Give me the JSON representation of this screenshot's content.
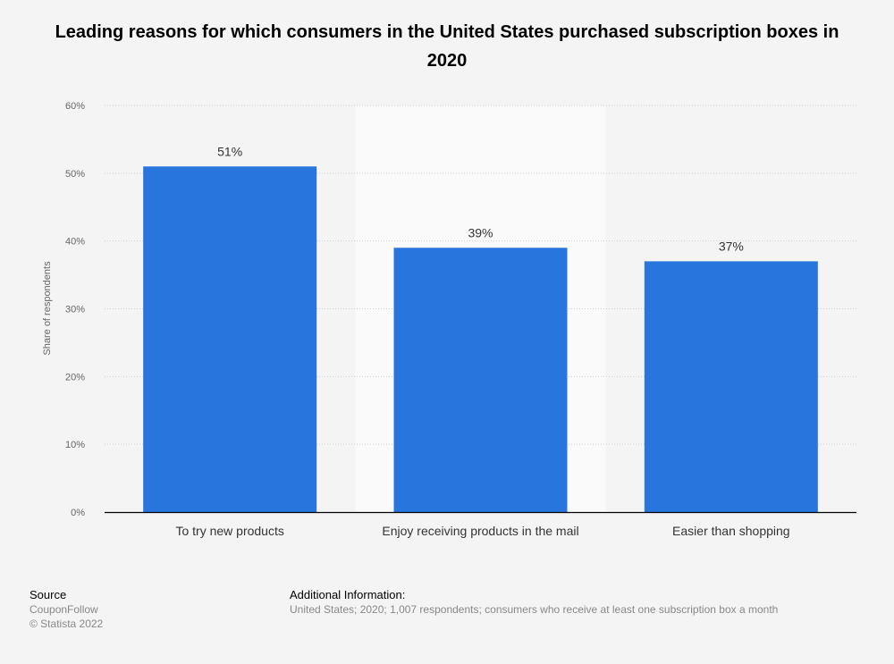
{
  "chart_data": {
    "type": "bar",
    "title": "Leading reasons for which consumers in the United States purchased subscription boxes in 2020",
    "categories": [
      "To try new products",
      "Enjoy receiving products in the mail",
      "Easier than shopping"
    ],
    "values": [
      51,
      39,
      37
    ],
    "data_labels": [
      "51%",
      "39%",
      "37%"
    ],
    "xlabel": "",
    "ylabel": "Share of respondents",
    "ylim": [
      0,
      60
    ],
    "yticks": [
      0,
      10,
      20,
      30,
      40,
      50,
      60
    ],
    "ytick_labels": [
      "0%",
      "10%",
      "20%",
      "30%",
      "40%",
      "50%",
      "60%"
    ],
    "grid": true,
    "bar_color": "#2875dd",
    "highlighted_category": 1
  },
  "footer": {
    "source_heading": "Source",
    "source": "CouponFollow",
    "copyright": "© Statista 2022",
    "info_heading": "Additional Information:",
    "info": "United States; 2020; 1,007 respondents; consumers who receive at least one subscription box a month"
  }
}
